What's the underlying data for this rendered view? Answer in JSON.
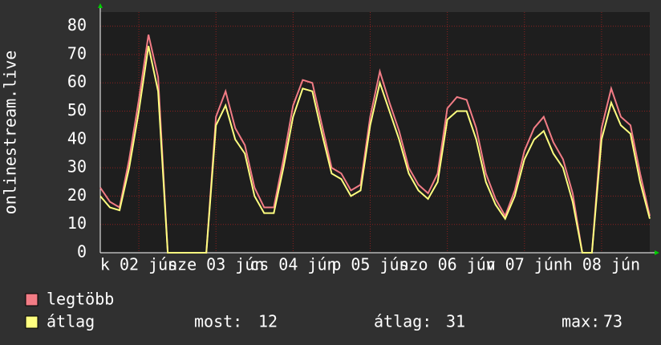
{
  "chart_data": {
    "type": "line",
    "ylabel": "onlinestream.live",
    "x": [
      0,
      3,
      6,
      9,
      12,
      15,
      18,
      21,
      24,
      27,
      30,
      33,
      36,
      39,
      42,
      45,
      48,
      51,
      54,
      57,
      60,
      63,
      66,
      69,
      72,
      75,
      78,
      81,
      84,
      87,
      90,
      93,
      96,
      99,
      102,
      105,
      108,
      111,
      114,
      117,
      120,
      123,
      126,
      129,
      132,
      135,
      138,
      141,
      144,
      147,
      150,
      153,
      156,
      159,
      162,
      165,
      168,
      171
    ],
    "xlim": [
      0,
      171
    ],
    "xticks": [
      {
        "value": 12,
        "label": "k 02 jún"
      },
      {
        "value": 36,
        "label": "sze 03 jún"
      },
      {
        "value": 60,
        "label": "cs 04 jún"
      },
      {
        "value": 84,
        "label": "p 05 jún"
      },
      {
        "value": 108,
        "label": "szo 06 jún"
      },
      {
        "value": 132,
        "label": "v 07 jún"
      },
      {
        "value": 156,
        "label": "h 08 jún"
      }
    ],
    "ylim": [
      0,
      85
    ],
    "yticks": [
      0,
      10,
      20,
      30,
      40,
      50,
      60,
      70,
      80
    ],
    "grid": true,
    "series": [
      {
        "name": "legtöbb",
        "color": "#f27c85",
        "values": [
          23,
          18,
          16,
          33,
          54,
          77,
          62,
          0,
          0,
          0,
          0,
          0,
          48,
          57,
          44,
          38,
          23,
          16,
          16,
          33,
          52,
          61,
          60,
          45,
          30,
          28,
          22,
          24,
          48,
          64,
          53,
          43,
          30,
          24,
          21,
          28,
          51,
          55,
          54,
          44,
          28,
          19,
          13,
          22,
          36,
          44,
          48,
          39,
          33,
          21,
          0,
          0,
          44,
          58,
          48,
          45,
          28,
          13
        ]
      },
      {
        "name": "átlag",
        "color": "#ffff80",
        "values": [
          20,
          16,
          15,
          30,
          50,
          73,
          57,
          0,
          0,
          0,
          0,
          0,
          45,
          52,
          40,
          35,
          20,
          14,
          14,
          30,
          48,
          58,
          57,
          42,
          28,
          26,
          20,
          22,
          45,
          60,
          50,
          40,
          28,
          22,
          19,
          25,
          47,
          50,
          50,
          40,
          25,
          17,
          12,
          20,
          33,
          40,
          43,
          35,
          30,
          18,
          0,
          0,
          40,
          53,
          45,
          42,
          25,
          12
        ]
      }
    ],
    "stats": [
      {
        "label": "most:",
        "value": 12
      },
      {
        "label": "átlag:",
        "value": 31
      },
      {
        "label": "max:",
        "value": 73
      }
    ]
  }
}
